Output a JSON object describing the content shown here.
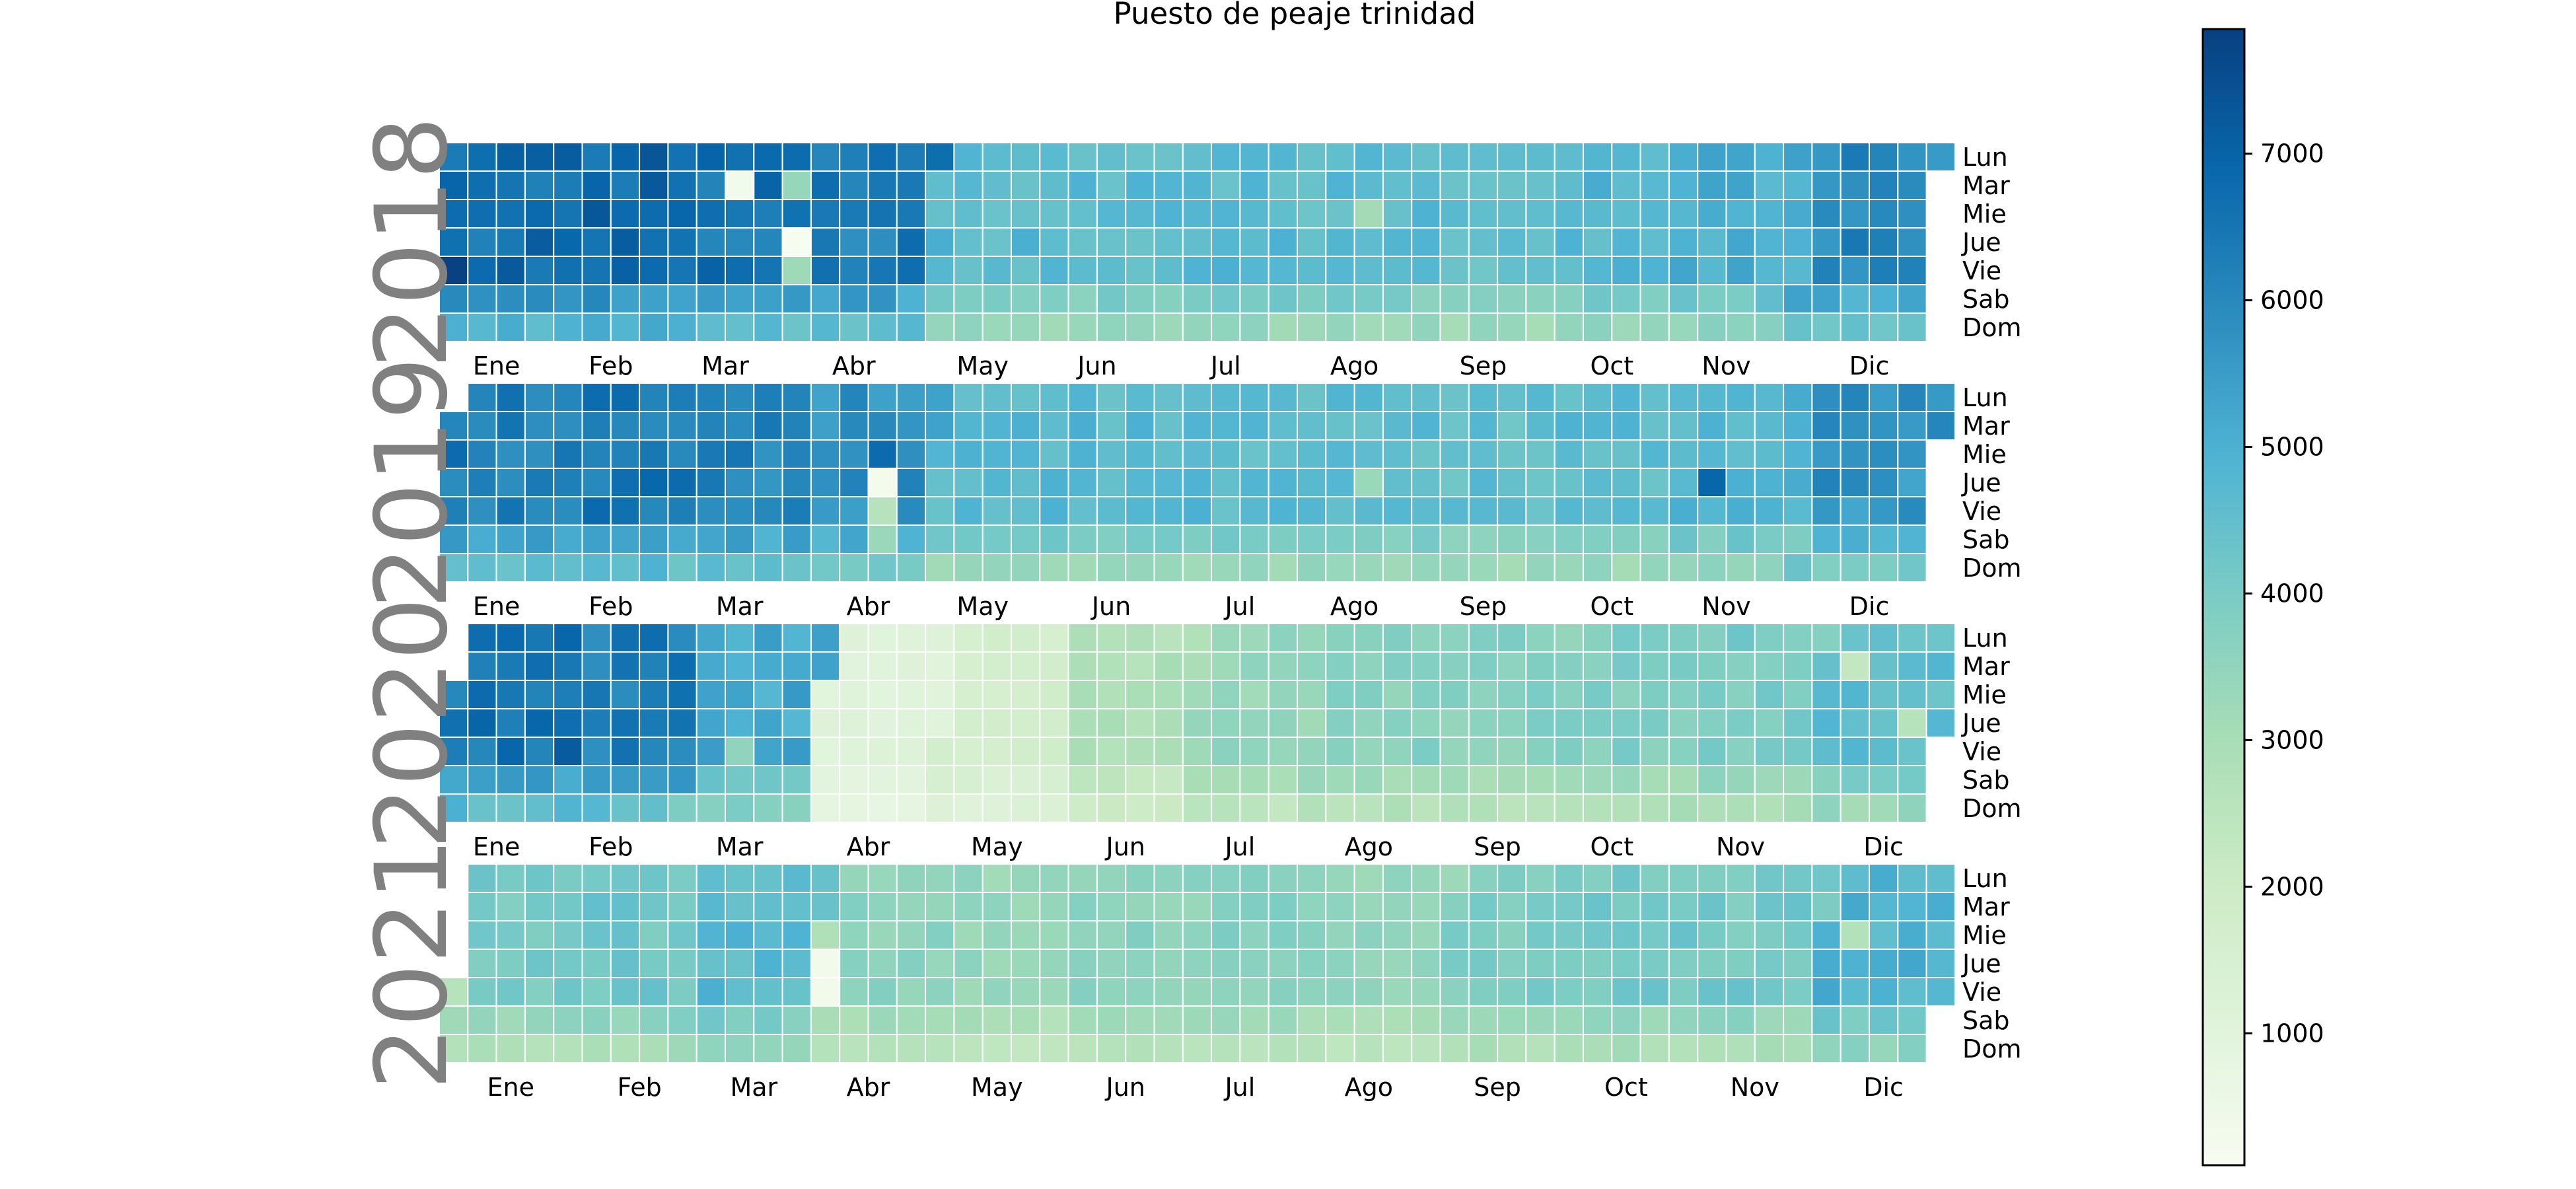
{
  "chart_data": {
    "type": "heatmap",
    "title": "Puesto de peaje trinidad",
    "colormap": "GnBu",
    "colormap_stops": [
      "#f7fcf0",
      "#e0f3db",
      "#ccebc5",
      "#a8ddb5",
      "#7bccc4",
      "#4eb3d3",
      "#2b8cbe",
      "#0868ac",
      "#084081"
    ],
    "vmin": 100,
    "vmax": 7850,
    "colorbar_ticks": [
      1000,
      2000,
      3000,
      4000,
      5000,
      6000,
      7000
    ],
    "colorbar_labels": [
      "1000",
      "2000",
      "3000",
      "4000",
      "5000",
      "6000",
      "7000"
    ],
    "day_labels": [
      "Lun",
      "Mar",
      "Mie",
      "Jue",
      "Vie",
      "Sab",
      "Dom"
    ],
    "month_labels": [
      "Ene",
      "Feb",
      "Mar",
      "Abr",
      "May",
      "Jun",
      "Jul",
      "Ago",
      "Sep",
      "Oct",
      "Nov",
      "Dic"
    ],
    "years": [
      {
        "year": "2018",
        "first_weekday": 0,
        "days_in_year": 365,
        "month_levels": [
          6700,
          6800,
          6500,
          6300,
          4700,
          4600,
          4700,
          4600,
          4550,
          4750,
          5000,
          6000
        ],
        "special_days": [
          {
            "date": "2018-03-13",
            "value": 300
          },
          {
            "date": "2018-03-29",
            "value": 150
          },
          {
            "date": "2018-03-30",
            "value": 3200
          },
          {
            "date": "2018-03-27",
            "value": 3400
          },
          {
            "date": "2018-01-05",
            "value": 7800
          },
          {
            "date": "2018-08-15",
            "value": 3100
          }
        ]
      },
      {
        "year": "2019",
        "first_weekday": 1,
        "days_in_year": 365,
        "month_levels": [
          6300,
          6400,
          6100,
          5800,
          4700,
          4700,
          4650,
          4600,
          4550,
          4600,
          4800,
          5700
        ],
        "special_days": [
          {
            "date": "2019-04-18",
            "value": 250
          },
          {
            "date": "2019-04-19",
            "value": 2600
          },
          {
            "date": "2019-04-17",
            "value": 6800
          },
          {
            "date": "2019-04-20",
            "value": 3300
          },
          {
            "date": "2019-11-07",
            "value": 6900
          },
          {
            "date": "2019-08-15",
            "value": 3300
          }
        ]
      },
      {
        "year": "2020",
        "first_weekday": 2,
        "days_in_year": 366,
        "month_levels": [
          6500,
          6300,
          5200,
          1100,
          1700,
          2800,
          3400,
          3700,
          3700,
          3800,
          4000,
          4600
        ],
        "special_days": [
          {
            "date": "2020-01-31",
            "value": 7200
          },
          {
            "date": "2020-03-13",
            "value": 3500
          },
          {
            "date": "2020-12-08",
            "value": 2300
          },
          {
            "date": "2020-12-24",
            "value": 2600
          }
        ]
      },
      {
        "year": "2021",
        "first_weekday": 4,
        "days_in_year": 365,
        "month_levels": [
          4000,
          4200,
          4700,
          3600,
          3400,
          3600,
          3700,
          3500,
          3900,
          4100,
          4100,
          4900
        ],
        "special_days": [
          {
            "date": "2021-01-01",
            "value": 2600
          },
          {
            "date": "2021-04-01",
            "value": 300
          },
          {
            "date": "2021-04-02",
            "value": 300
          },
          {
            "date": "2021-03-31",
            "value": 2800
          },
          {
            "date": "2021-12-08",
            "value": 2700
          }
        ]
      }
    ]
  }
}
